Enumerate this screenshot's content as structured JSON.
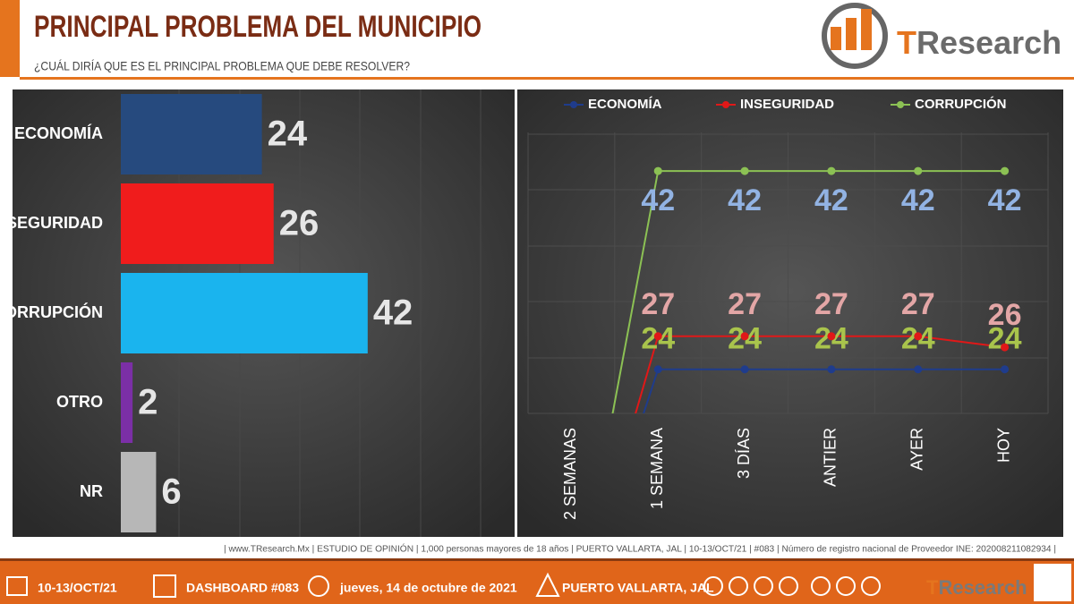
{
  "header": {
    "title": "PRINCIPAL PROBLEMA DEL MUNICIPIO",
    "subtitle": "¿CUÁL DIRÍA QUE ES EL PRINCIPAL PROBLEMA QUE DEBE RESOLVER?",
    "logo": {
      "initial": "T",
      "rest": "Research"
    }
  },
  "chart_data": [
    {
      "type": "bar",
      "orientation": "horizontal",
      "categories": [
        "ECONOMÍA",
        "INSEGURIDAD",
        "CORRUPCIÓN",
        "OTRO",
        "NR"
      ],
      "values": [
        24,
        26,
        42,
        2,
        6
      ],
      "colors": [
        "#264a7e",
        "#f01c1c",
        "#1ab4ee",
        "#7b2fa6",
        "#b7b7b7"
      ],
      "xlim": [
        0,
        67
      ]
    },
    {
      "type": "line",
      "categories": [
        "2 SEMANAS",
        "1 SEMANA",
        "3 DÍAS",
        "ANTIER",
        "AYER",
        "HOY"
      ],
      "series": [
        {
          "name": "ECONOMÍA",
          "color": "#1f3c8c",
          "label_color": "#a9c44c",
          "values": [
            0,
            24,
            24,
            24,
            24,
            24
          ]
        },
        {
          "name": "INSEGURIDAD",
          "color": "#e01818",
          "label_color": "#e3a6a6",
          "values": [
            0,
            27,
            27,
            27,
            27,
            26
          ]
        },
        {
          "name": "CORRUPCIÓN",
          "color": "#8cc154",
          "label_color": "#92b3e3",
          "values": [
            0,
            42,
            42,
            42,
            42,
            42
          ]
        }
      ],
      "ylim": [
        20,
        45.5
      ],
      "legend": "top",
      "grid": true
    }
  ],
  "footer": {
    "note": "| www.TResearch.Mx | ESTUDIO DE OPINIÓN | 1,000 personas mayores de 18 años | PUERTO VALLARTA, JAL | 10-13/OCT/21 | #083 | Número de registro nacional de Proveedor INE: 202008211082934 |",
    "items": [
      "10-13/OCT/21",
      "DASHBOARD #083",
      "jueves, 14 de octubre de 2021",
      "PUERTO VALLARTA, JAL"
    ],
    "logo": {
      "initial": "T",
      "rest": "Research"
    }
  }
}
